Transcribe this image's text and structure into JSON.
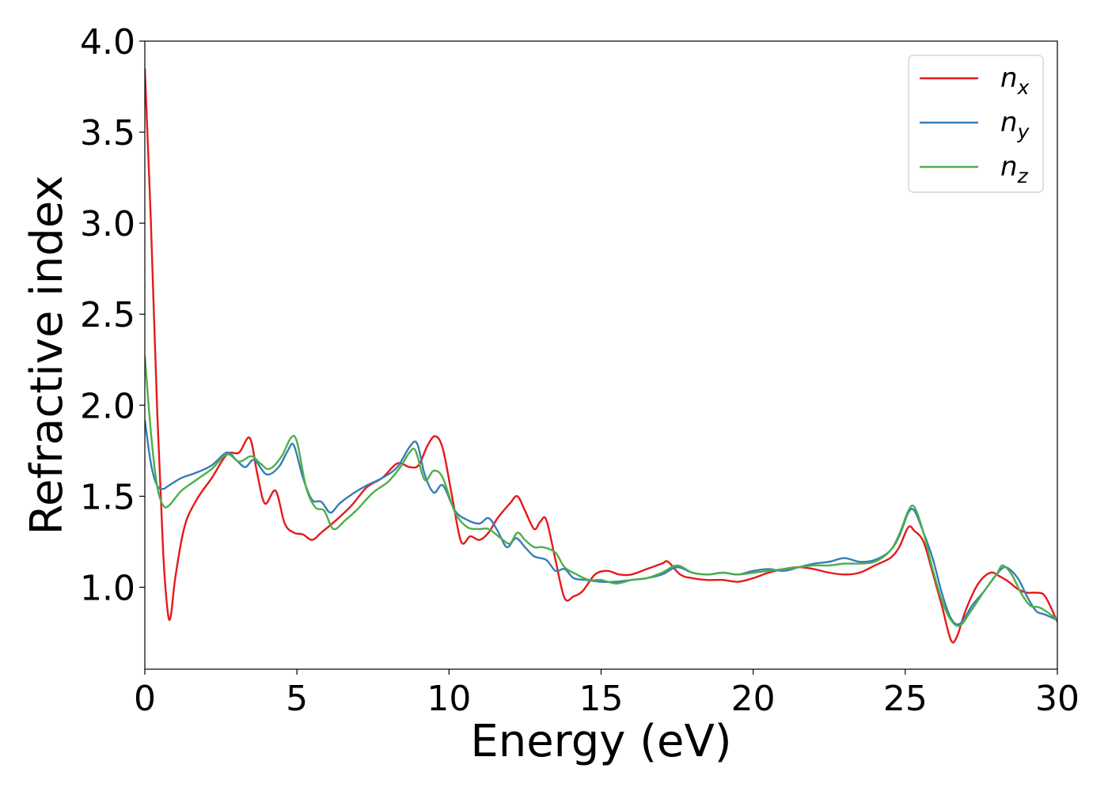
{
  "chart_data": {
    "type": "line",
    "xlabel": "Energy (eV)",
    "ylabel": "Refractive index",
    "xlim": [
      0,
      30
    ],
    "ylim": [
      0.55,
      4.0
    ],
    "xticks": [
      0,
      5,
      10,
      15,
      20,
      25,
      30
    ],
    "xtick_labels": [
      "0",
      "5",
      "10",
      "15",
      "20",
      "25",
      "30"
    ],
    "yticks": [
      1.0,
      1.5,
      2.0,
      2.5,
      3.0,
      3.5,
      4.0
    ],
    "ytick_labels": [
      "1.0",
      "1.5",
      "2.0",
      "2.5",
      "3.0",
      "3.5",
      "4.0"
    ],
    "grid": false,
    "legend": "top-right",
    "series": [
      {
        "name": "n_x",
        "label_base": "n",
        "label_sub": "x",
        "color": "#e41a1c",
        "x": [
          0,
          0.2,
          0.4,
          0.6,
          0.75,
          0.85,
          1.0,
          1.3,
          1.7,
          2.2,
          2.7,
          3.1,
          3.45,
          3.7,
          3.95,
          4.3,
          4.6,
          4.9,
          5.2,
          5.5,
          5.8,
          6.3,
          6.8,
          7.3,
          7.8,
          8.3,
          8.7,
          9.0,
          9.3,
          9.55,
          9.8,
          10.1,
          10.4,
          10.7,
          11.0,
          11.3,
          11.6,
          12.0,
          12.25,
          12.5,
          12.8,
          13.0,
          13.2,
          13.5,
          13.8,
          14.1,
          14.4,
          14.8,
          15.2,
          15.6,
          16.0,
          16.5,
          17.0,
          17.2,
          17.6,
          18.0,
          18.5,
          19.0,
          19.5,
          20.0,
          20.5,
          21.0,
          21.5,
          22.0,
          22.5,
          23.0,
          23.5,
          24.0,
          24.5,
          24.8,
          25.1,
          25.3,
          25.6,
          25.9,
          26.2,
          26.5,
          26.7,
          27.0,
          27.4,
          27.8,
          28.1,
          28.4,
          28.7,
          29.0,
          29.3,
          29.6,
          30.0
        ],
        "y": [
          3.85,
          3.0,
          2.0,
          1.2,
          0.87,
          0.84,
          1.05,
          1.33,
          1.48,
          1.6,
          1.73,
          1.74,
          1.82,
          1.62,
          1.46,
          1.53,
          1.35,
          1.3,
          1.29,
          1.26,
          1.3,
          1.37,
          1.45,
          1.55,
          1.6,
          1.68,
          1.66,
          1.67,
          1.78,
          1.83,
          1.76,
          1.5,
          1.25,
          1.28,
          1.26,
          1.3,
          1.38,
          1.46,
          1.5,
          1.42,
          1.32,
          1.36,
          1.37,
          1.15,
          0.94,
          0.95,
          0.98,
          1.07,
          1.09,
          1.07,
          1.07,
          1.1,
          1.13,
          1.14,
          1.07,
          1.05,
          1.04,
          1.04,
          1.03,
          1.05,
          1.08,
          1.1,
          1.11,
          1.1,
          1.08,
          1.07,
          1.08,
          1.12,
          1.16,
          1.22,
          1.33,
          1.31,
          1.25,
          1.08,
          0.9,
          0.71,
          0.73,
          0.88,
          1.02,
          1.08,
          1.06,
          1.03,
          0.99,
          0.97,
          0.97,
          0.95,
          0.81
        ]
      },
      {
        "name": "n_y",
        "label_base": "n",
        "label_sub": "y",
        "color": "#377eb8",
        "x": [
          0,
          0.2,
          0.4,
          0.6,
          0.8,
          1.2,
          1.7,
          2.2,
          2.7,
          3.0,
          3.3,
          3.6,
          4.0,
          4.4,
          4.7,
          4.9,
          5.2,
          5.5,
          5.8,
          6.1,
          6.4,
          6.8,
          7.3,
          7.8,
          8.3,
          8.7,
          8.95,
          9.2,
          9.5,
          9.8,
          10.2,
          10.6,
          11.0,
          11.3,
          11.6,
          11.9,
          12.2,
          12.5,
          12.8,
          13.2,
          13.5,
          13.8,
          14.1,
          14.5,
          15.0,
          15.5,
          16.0,
          16.5,
          17.0,
          17.5,
          18.0,
          18.5,
          19.0,
          19.5,
          20.0,
          20.5,
          21.0,
          21.5,
          22.0,
          22.5,
          23.0,
          23.5,
          24.0,
          24.5,
          24.8,
          25.1,
          25.3,
          25.6,
          25.9,
          26.2,
          26.5,
          26.8,
          27.2,
          27.6,
          28.0,
          28.3,
          28.7,
          29.0,
          29.3,
          29.6,
          30.0
        ],
        "y": [
          1.92,
          1.68,
          1.56,
          1.54,
          1.56,
          1.6,
          1.63,
          1.67,
          1.74,
          1.7,
          1.66,
          1.7,
          1.62,
          1.66,
          1.75,
          1.78,
          1.6,
          1.48,
          1.47,
          1.41,
          1.46,
          1.51,
          1.56,
          1.6,
          1.66,
          1.77,
          1.79,
          1.62,
          1.52,
          1.56,
          1.42,
          1.37,
          1.35,
          1.38,
          1.31,
          1.22,
          1.27,
          1.22,
          1.17,
          1.15,
          1.09,
          1.1,
          1.05,
          1.04,
          1.03,
          1.03,
          1.04,
          1.05,
          1.07,
          1.11,
          1.08,
          1.07,
          1.08,
          1.07,
          1.09,
          1.1,
          1.09,
          1.11,
          1.13,
          1.14,
          1.16,
          1.14,
          1.15,
          1.2,
          1.28,
          1.41,
          1.42,
          1.3,
          1.16,
          0.97,
          0.83,
          0.8,
          0.9,
          0.98,
          1.07,
          1.11,
          1.05,
          0.95,
          0.87,
          0.85,
          0.82
        ]
      },
      {
        "name": "n_z",
        "label_base": "n",
        "label_sub": "z",
        "color": "#4daf4a",
        "x": [
          0,
          0.2,
          0.4,
          0.6,
          0.8,
          1.2,
          1.7,
          2.2,
          2.7,
          3.1,
          3.5,
          3.8,
          4.1,
          4.5,
          4.8,
          5.0,
          5.3,
          5.6,
          5.9,
          6.2,
          6.6,
          7.0,
          7.5,
          8.0,
          8.4,
          8.7,
          8.9,
          9.2,
          9.5,
          9.8,
          10.2,
          10.6,
          11.0,
          11.3,
          11.7,
          12.0,
          12.25,
          12.5,
          12.8,
          13.1,
          13.5,
          13.8,
          14.2,
          14.6,
          15.0,
          15.5,
          16.0,
          16.5,
          17.0,
          17.5,
          18.0,
          18.5,
          19.0,
          19.5,
          20.0,
          20.5,
          21.0,
          21.5,
          22.0,
          22.5,
          23.0,
          23.5,
          24.0,
          24.5,
          24.8,
          25.1,
          25.3,
          25.6,
          25.9,
          26.2,
          26.5,
          26.8,
          27.2,
          27.6,
          28.0,
          28.2,
          28.5,
          28.8,
          29.1,
          29.4,
          29.7,
          30.0
        ],
        "y": [
          2.27,
          1.85,
          1.56,
          1.45,
          1.45,
          1.53,
          1.59,
          1.65,
          1.73,
          1.69,
          1.72,
          1.68,
          1.65,
          1.72,
          1.82,
          1.8,
          1.55,
          1.44,
          1.42,
          1.32,
          1.37,
          1.43,
          1.52,
          1.58,
          1.66,
          1.74,
          1.75,
          1.59,
          1.64,
          1.6,
          1.41,
          1.33,
          1.32,
          1.32,
          1.27,
          1.24,
          1.3,
          1.26,
          1.22,
          1.22,
          1.19,
          1.11,
          1.07,
          1.04,
          1.04,
          1.02,
          1.04,
          1.05,
          1.08,
          1.12,
          1.08,
          1.07,
          1.08,
          1.07,
          1.08,
          1.09,
          1.1,
          1.11,
          1.12,
          1.12,
          1.13,
          1.13,
          1.14,
          1.2,
          1.29,
          1.42,
          1.44,
          1.3,
          1.1,
          0.93,
          0.82,
          0.79,
          0.88,
          0.98,
          1.07,
          1.12,
          1.07,
          0.97,
          0.9,
          0.89,
          0.86,
          0.82
        ]
      }
    ]
  }
}
